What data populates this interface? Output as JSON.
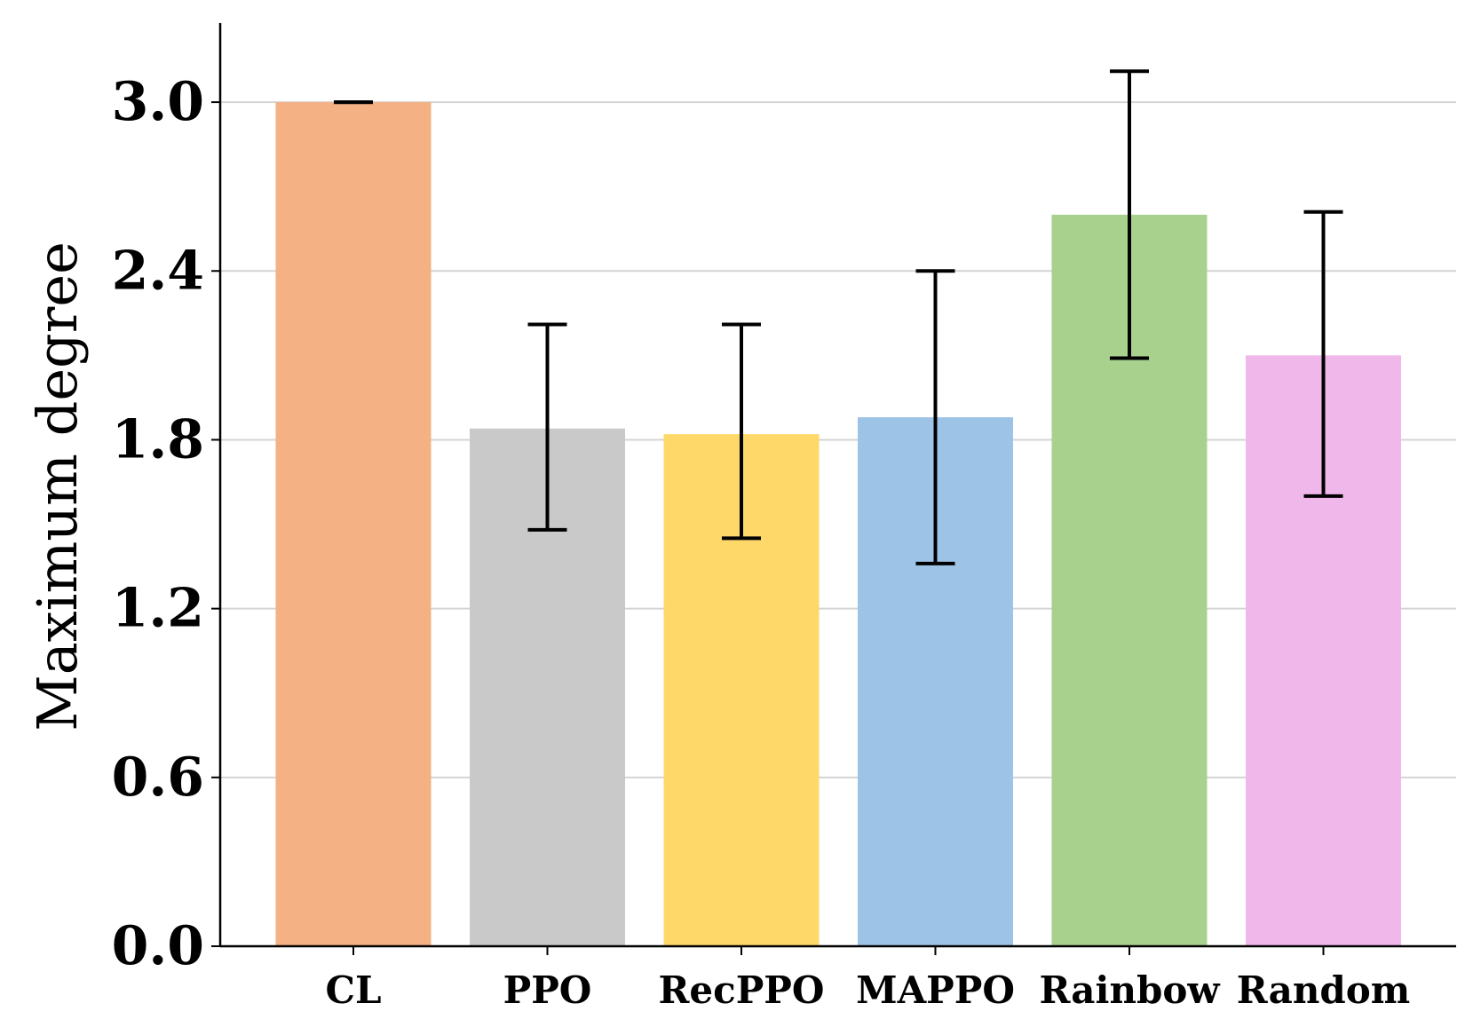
{
  "chart_data": {
    "type": "bar",
    "title": "",
    "xlabel": "",
    "ylabel": "Maximum degree",
    "categories": [
      "CL",
      "PPO",
      "RecPPO",
      "MAPPO",
      "Rainbow",
      "Random"
    ],
    "values": [
      3.0,
      1.84,
      1.82,
      1.88,
      2.6,
      2.1
    ],
    "error_low": [
      3.0,
      1.48,
      1.45,
      1.36,
      2.09,
      1.6
    ],
    "error_high": [
      3.0,
      2.21,
      2.21,
      2.4,
      3.11,
      2.61
    ],
    "colors": [
      "#F4B183",
      "#C9C9C9",
      "#FED96A",
      "#9DC3E6",
      "#A9D18E",
      "#F0B7EB"
    ],
    "ylim": [
      0,
      3.3
    ],
    "yticks": [
      "0.0",
      "0.6",
      "1.2",
      "1.8",
      "2.4",
      "3.0"
    ],
    "grid": true,
    "legend": "none"
  }
}
